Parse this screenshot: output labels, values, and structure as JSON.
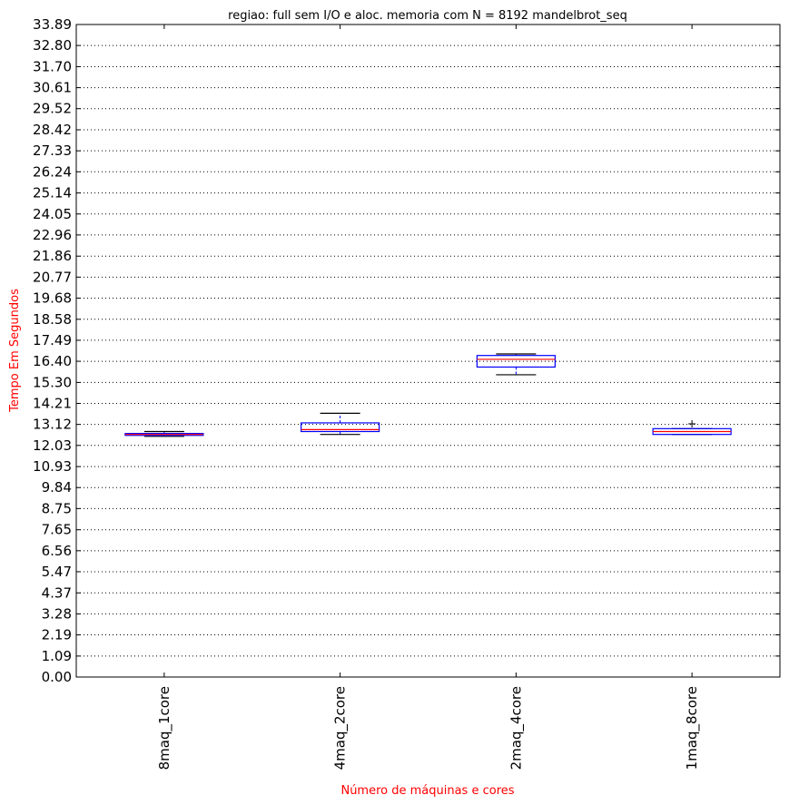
{
  "chart_data": {
    "type": "boxplot",
    "title": "regiao: full sem I/O e aloc. memoria com N = 8192 mandelbrot_seq",
    "xlabel": "Número de máquinas e cores",
    "ylabel": "Tempo Em Segundos",
    "ylim": [
      0,
      33.89
    ],
    "yticks": [
      "0.00",
      "1.09",
      "2.19",
      "3.28",
      "4.37",
      "5.47",
      "6.56",
      "7.65",
      "8.75",
      "9.84",
      "10.93",
      "12.03",
      "13.12",
      "14.21",
      "15.30",
      "16.40",
      "17.49",
      "18.58",
      "19.68",
      "20.77",
      "21.86",
      "22.96",
      "24.05",
      "25.14",
      "26.24",
      "27.33",
      "28.42",
      "29.52",
      "30.61",
      "31.70",
      "32.80",
      "33.89"
    ],
    "grid": "horizontal dotted",
    "categories": [
      "8maq_1core",
      "4maq_2core",
      "2maq_4core",
      "1maq_8core"
    ],
    "boxes": [
      {
        "label": "8maq_1core",
        "whisker_low": 12.5,
        "q1": 12.55,
        "median": 12.6,
        "q3": 12.65,
        "whisker_high": 12.75,
        "fliers": []
      },
      {
        "label": "4maq_2core",
        "whisker_low": 12.6,
        "q1": 12.75,
        "median": 12.85,
        "q3": 13.2,
        "whisker_high": 13.7,
        "fliers": []
      },
      {
        "label": "2maq_4core",
        "whisker_low": 15.7,
        "q1": 16.1,
        "median": 16.5,
        "q3": 16.7,
        "whisker_high": 16.78,
        "fliers": []
      },
      {
        "label": "1maq_8core",
        "whisker_low": 12.6,
        "q1": 12.6,
        "median": 12.75,
        "q3": 12.9,
        "whisker_high": 12.9,
        "fliers": [
          13.15
        ]
      }
    ],
    "colors": {
      "box": "#0000ff",
      "median": "#ff0000",
      "whisker": "#000000",
      "label_red": "#ff0000",
      "axis": "#000000",
      "grid": "#000000"
    }
  }
}
